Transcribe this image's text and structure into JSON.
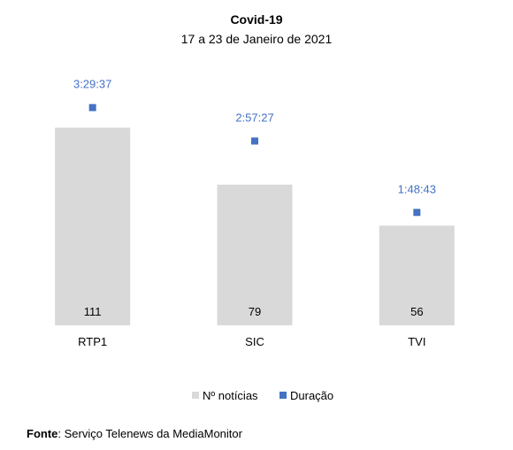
{
  "chart_data": {
    "type": "bar",
    "title": "Covid-19",
    "subtitle": "17 a 23 de Janeiro de 2021",
    "categories": [
      "RTP1",
      "SIC",
      "TVI"
    ],
    "series": [
      {
        "name": "Nº notícias",
        "type": "bar",
        "values": [
          111,
          79,
          56
        ],
        "labels": [
          "111",
          "79",
          "56"
        ]
      },
      {
        "name": "Duração",
        "type": "scatter",
        "values_seconds": [
          12577,
          10647,
          6523
        ],
        "labels": [
          "3:29:37",
          "2:57:27",
          "1:48:43"
        ]
      }
    ],
    "ylim": [
      0,
      140
    ],
    "duration_ylim_seconds": [
      0,
      14400
    ],
    "grid": false,
    "legend_position": "bottom",
    "colors": {
      "bar": "#D9D9D9",
      "marker": "#4472C4"
    }
  },
  "source": {
    "label": "Fonte",
    "text": ": Serviço Telenews da MediaMonitor"
  }
}
